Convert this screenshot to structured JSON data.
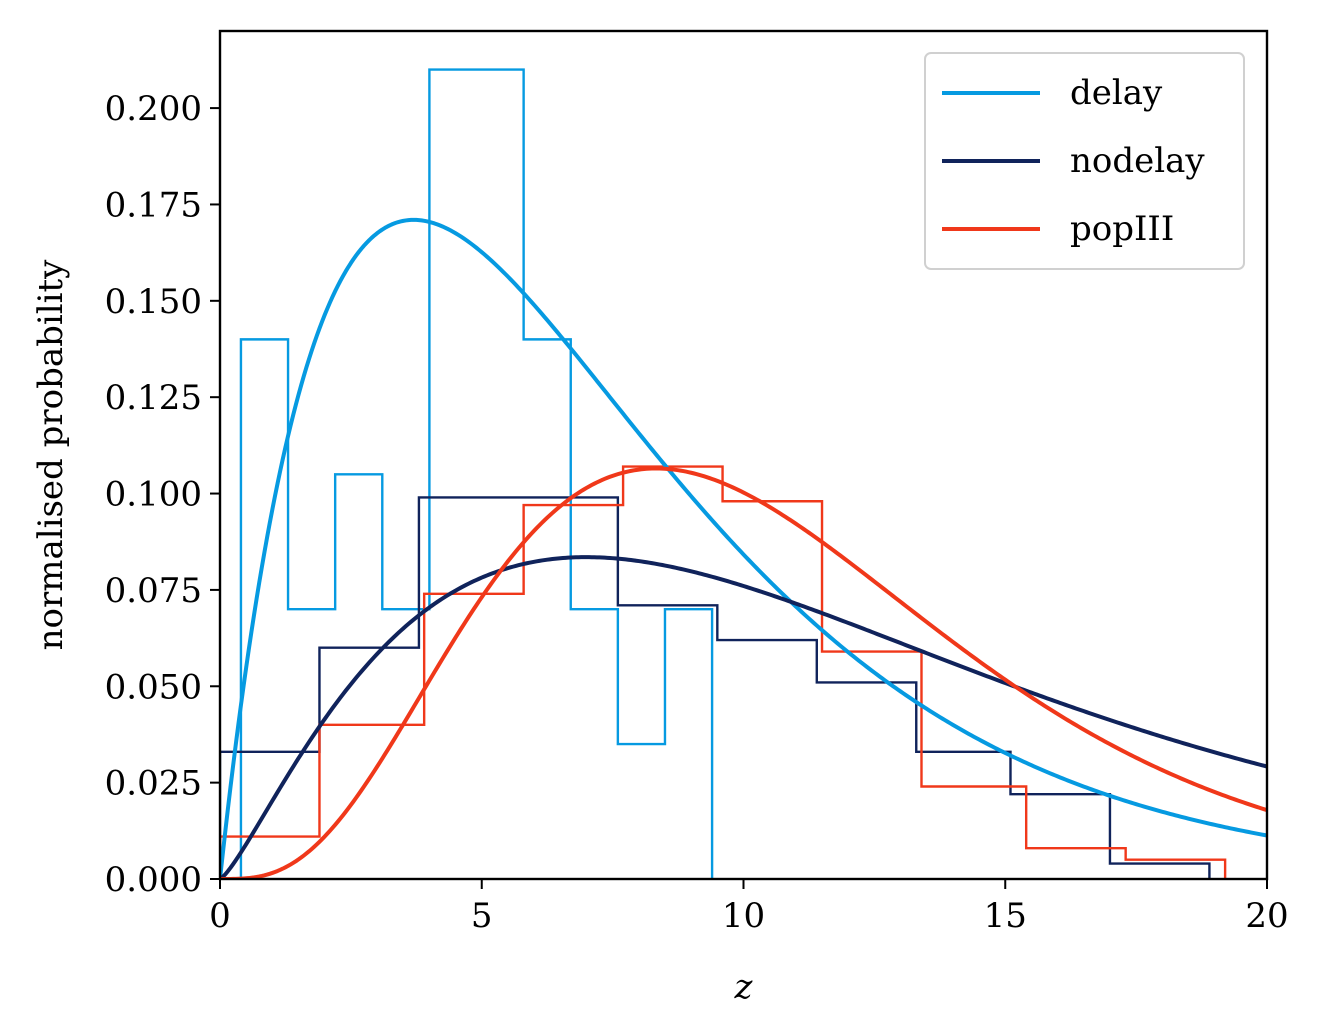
{
  "chart_data": {
    "type": "histogram",
    "title": "",
    "xlabel": "z",
    "ylabel": "normalised probability",
    "xlim": [
      0,
      20
    ],
    "ylim": [
      0,
      0.22
    ],
    "xticks": [
      0,
      5,
      10,
      15,
      20
    ],
    "xtick_labels": [
      "0",
      "5",
      "10",
      "15",
      "20"
    ],
    "yticks": [
      0,
      0.025,
      0.05,
      0.075,
      0.1,
      0.125,
      0.15,
      0.175,
      0.2
    ],
    "ytick_labels": [
      "0.000",
      "0.025",
      "0.050",
      "0.075",
      "0.100",
      "0.125",
      "0.150",
      "0.175",
      "0.200"
    ],
    "grid": false,
    "legend_position": "top-right",
    "series": [
      {
        "name": "delay",
        "color": "#069AE1",
        "histogram": {
          "edges": [
            0.4,
            1.3,
            2.2,
            3.1,
            4.0,
            4.9,
            5.8,
            6.7,
            7.6,
            8.5,
            9.4
          ],
          "heights": [
            0.14,
            0.07,
            0.105,
            0.07,
            0.21,
            0.21,
            0.14,
            0.07,
            0.035,
            0.07
          ]
        },
        "curve": {
          "family": "gamma",
          "shape": 2.0,
          "scale": 3.7,
          "mode_z": 3.7,
          "peak": 0.171
        }
      },
      {
        "name": "nodelay",
        "color": "#10235B",
        "histogram": {
          "edges": [
            0.0,
            1.9,
            3.8,
            5.7,
            7.6,
            9.5,
            11.4,
            13.3,
            15.1,
            17.0,
            18.9
          ],
          "heights": [
            0.033,
            0.06,
            0.099,
            0.099,
            0.071,
            0.062,
            0.051,
            0.033,
            0.022,
            0.004
          ]
        },
        "curve": {
          "family": "gamma",
          "shape": 2.3,
          "scale": 5.38,
          "mode_z": 7.0,
          "peak": 0.0835
        }
      },
      {
        "name": "popIII",
        "color": "#F0381A",
        "histogram": {
          "edges": [
            0.0,
            1.9,
            3.9,
            5.8,
            7.7,
            9.6,
            11.5,
            13.4,
            15.4,
            17.3,
            19.2
          ],
          "heights": [
            0.011,
            0.04,
            0.074,
            0.097,
            0.107,
            0.098,
            0.059,
            0.024,
            0.008,
            0.005
          ]
        },
        "curve": {
          "family": "gamma",
          "shape": 4.4,
          "scale": 2.45,
          "mode_z": 8.3,
          "peak": 0.1065
        }
      }
    ]
  }
}
